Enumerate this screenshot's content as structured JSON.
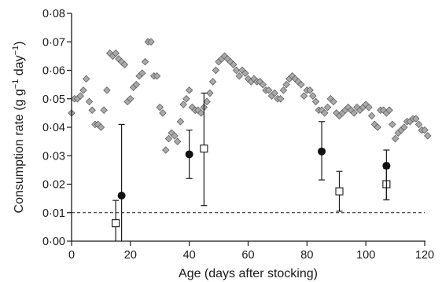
{
  "chart_data": {
    "type": "scatter",
    "xlabel": "Age (days after stocking)",
    "ylabel": {
      "prefix": "Consumption rate (g g",
      "sup1": "−1",
      "mid": " day",
      "sup2": "−1",
      "suffix": ")"
    },
    "xlim": [
      0,
      120
    ],
    "ylim": [
      0,
      0.08
    ],
    "xticks": [
      0,
      20,
      40,
      60,
      80,
      100,
      120
    ],
    "yticks": [
      0,
      0.01,
      0.02,
      0.03,
      0.04,
      0.05,
      0.06,
      0.07,
      0.08
    ],
    "xtick_labels": [
      "0",
      "20",
      "40",
      "60",
      "80",
      "100",
      "120"
    ],
    "ytick_labels": [
      "0·00",
      "0·01",
      "0·02",
      "0·03",
      "0·04",
      "0·05",
      "0·06",
      "0·07",
      "0·08"
    ],
    "grid": false,
    "reference_line": {
      "y": 0.01,
      "style": "dashed"
    },
    "series": [
      {
        "marker": "diamond",
        "color": "#a9a9a9",
        "points": [
          [
            0,
            0.045
          ],
          [
            1,
            0.05
          ],
          [
            2,
            0.05
          ],
          [
            3,
            0.051
          ],
          [
            4,
            0.053
          ],
          [
            5,
            0.057
          ],
          [
            6,
            0.049
          ],
          [
            7,
            0.046
          ],
          [
            8,
            0.041
          ],
          [
            9,
            0.041
          ],
          [
            10,
            0.04
          ],
          [
            11,
            0.046
          ],
          [
            12,
            0.053
          ],
          [
            13,
            0.066
          ],
          [
            14,
            0.065
          ],
          [
            15,
            0.066
          ],
          [
            16,
            0.064
          ],
          [
            17,
            0.063
          ],
          [
            18,
            0.062
          ],
          [
            19,
            0.049
          ],
          [
            20,
            0.05
          ],
          [
            21,
            0.054
          ],
          [
            22,
            0.055
          ],
          [
            23,
            0.058
          ],
          [
            24,
            0.059
          ],
          [
            25,
            0.063
          ],
          [
            26,
            0.07
          ],
          [
            27,
            0.07
          ],
          [
            28,
            0.058
          ],
          [
            29,
            0.058
          ],
          [
            30,
            0.047
          ],
          [
            31,
            0.045
          ],
          [
            32,
            0.032
          ],
          [
            33,
            0.036
          ],
          [
            34,
            0.038
          ],
          [
            35,
            0.037
          ],
          [
            36,
            0.035
          ],
          [
            37,
            0.042
          ],
          [
            38,
            0.048
          ],
          [
            39,
            0.05
          ],
          [
            40,
            0.053
          ],
          [
            41,
            0.047
          ],
          [
            42,
            0.046
          ],
          [
            43,
            0.046
          ],
          [
            44,
            0.045
          ],
          [
            45,
            0.047
          ],
          [
            46,
            0.049
          ],
          [
            47,
            0.052
          ],
          [
            48,
            0.056
          ],
          [
            49,
            0.06
          ],
          [
            50,
            0.063
          ],
          [
            51,
            0.064
          ],
          [
            52,
            0.065
          ],
          [
            53,
            0.064
          ],
          [
            54,
            0.063
          ],
          [
            55,
            0.062
          ],
          [
            56,
            0.06
          ],
          [
            57,
            0.058
          ],
          [
            58,
            0.06
          ],
          [
            59,
            0.059
          ],
          [
            60,
            0.057
          ],
          [
            61,
            0.056
          ],
          [
            62,
            0.057
          ],
          [
            63,
            0.056
          ],
          [
            64,
            0.056
          ],
          [
            65,
            0.055
          ],
          [
            66,
            0.053
          ],
          [
            67,
            0.053
          ],
          [
            68,
            0.051
          ],
          [
            69,
            0.052
          ],
          [
            70,
            0.05
          ],
          [
            71,
            0.05
          ],
          [
            72,
            0.053
          ],
          [
            73,
            0.055
          ],
          [
            74,
            0.057
          ],
          [
            75,
            0.058
          ],
          [
            76,
            0.057
          ],
          [
            77,
            0.056
          ],
          [
            78,
            0.055
          ],
          [
            79,
            0.051
          ],
          [
            80,
            0.053
          ],
          [
            81,
            0.053
          ],
          [
            82,
            0.051
          ],
          [
            83,
            0.049
          ],
          [
            84,
            0.046
          ],
          [
            85,
            0.046
          ],
          [
            86,
            0.045
          ],
          [
            87,
            0.047
          ],
          [
            88,
            0.05
          ],
          [
            89,
            0.049
          ],
          [
            90,
            0.045
          ],
          [
            91,
            0.044
          ],
          [
            92,
            0.045
          ],
          [
            93,
            0.046
          ],
          [
            94,
            0.047
          ],
          [
            95,
            0.046
          ],
          [
            96,
            0.045
          ],
          [
            97,
            0.047
          ],
          [
            98,
            0.046
          ],
          [
            99,
            0.047
          ],
          [
            100,
            0.048
          ],
          [
            101,
            0.047
          ],
          [
            102,
            0.044
          ],
          [
            103,
            0.041
          ],
          [
            104,
            0.04
          ],
          [
            105,
            0.046
          ],
          [
            106,
            0.046
          ],
          [
            107,
            0.045
          ],
          [
            108,
            0.046
          ],
          [
            109,
            0.041
          ],
          [
            110,
            0.036
          ],
          [
            111,
            0.038
          ],
          [
            112,
            0.039
          ],
          [
            113,
            0.04
          ],
          [
            114,
            0.042
          ],
          [
            115,
            0.042
          ],
          [
            116,
            0.043
          ],
          [
            117,
            0.043
          ],
          [
            118,
            0.041
          ],
          [
            119,
            0.039
          ],
          [
            120,
            0.039
          ],
          [
            121,
            0.037
          ]
        ]
      },
      {
        "marker": "circle",
        "color": "#111111",
        "points": [
          {
            "x": 17,
            "y": 0.016,
            "lo": 0.0,
            "hi": 0.041
          },
          {
            "x": 40,
            "y": 0.0305,
            "lo": 0.022,
            "hi": 0.039
          },
          {
            "x": 85,
            "y": 0.0315,
            "lo": 0.0215,
            "hi": 0.042
          },
          {
            "x": 107,
            "y": 0.0265,
            "lo": 0.0145,
            "hi": 0.032
          }
        ]
      },
      {
        "marker": "square",
        "color": "#ffffff",
        "points": [
          {
            "x": 15,
            "y": 0.0063,
            "lo": 0.0,
            "hi": 0.0143
          },
          {
            "x": 45,
            "y": 0.0325,
            "lo": 0.0125,
            "hi": 0.052
          },
          {
            "x": 91,
            "y": 0.0175,
            "lo": 0.0105,
            "hi": 0.0245
          },
          {
            "x": 107,
            "y": 0.02,
            "lo": 0.0145,
            "hi": 0.0255
          }
        ]
      }
    ]
  }
}
